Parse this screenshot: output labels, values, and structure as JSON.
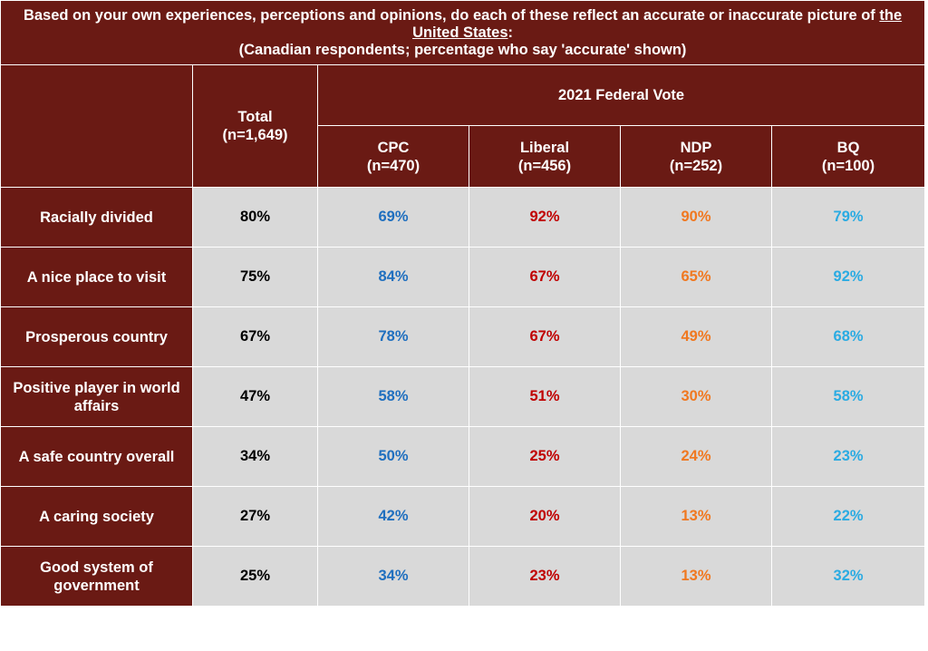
{
  "title": {
    "line1_pre": "Based on your own experiences, perceptions and opinions, do each of these reflect an accurate or inaccurate picture of ",
    "underlined": "the United States",
    "line1_post": ":",
    "line2": "(Canadian respondents; percentage who say 'accurate' shown)"
  },
  "colors": {
    "header_bg": "#6a1a14",
    "cell_bg": "#d9d9d9",
    "total": "#000000",
    "cpc": "#1f6fbf",
    "liberal": "#c00000",
    "ndp": "#f07820",
    "bq": "#2aabe2"
  },
  "chart_data": {
    "type": "table",
    "group_header": "2021 Federal Vote",
    "columns": [
      {
        "key": "total",
        "label": "Total",
        "n": "(n=1,649)"
      },
      {
        "key": "cpc",
        "label": "CPC",
        "n": "(n=470)"
      },
      {
        "key": "liberal",
        "label": "Liberal",
        "n": "(n=456)"
      },
      {
        "key": "ndp",
        "label": "NDP",
        "n": "(n=252)"
      },
      {
        "key": "bq",
        "label": "BQ",
        "n": "(n=100)"
      }
    ],
    "rows": [
      {
        "label": "Racially divided",
        "values": [
          "80%",
          "69%",
          "92%",
          "90%",
          "79%"
        ]
      },
      {
        "label": "A nice place to visit",
        "values": [
          "75%",
          "84%",
          "67%",
          "65%",
          "92%"
        ]
      },
      {
        "label": "Prosperous country",
        "values": [
          "67%",
          "78%",
          "67%",
          "49%",
          "68%"
        ]
      },
      {
        "label": "Positive player in world affairs",
        "values": [
          "47%",
          "58%",
          "51%",
          "30%",
          "58%"
        ]
      },
      {
        "label": "A safe country overall",
        "values": [
          "34%",
          "50%",
          "25%",
          "24%",
          "23%"
        ]
      },
      {
        "label": "A caring society",
        "values": [
          "27%",
          "42%",
          "20%",
          "13%",
          "22%"
        ]
      },
      {
        "label": "Good system of government",
        "values": [
          "25%",
          "34%",
          "23%",
          "13%",
          "32%"
        ]
      }
    ]
  }
}
